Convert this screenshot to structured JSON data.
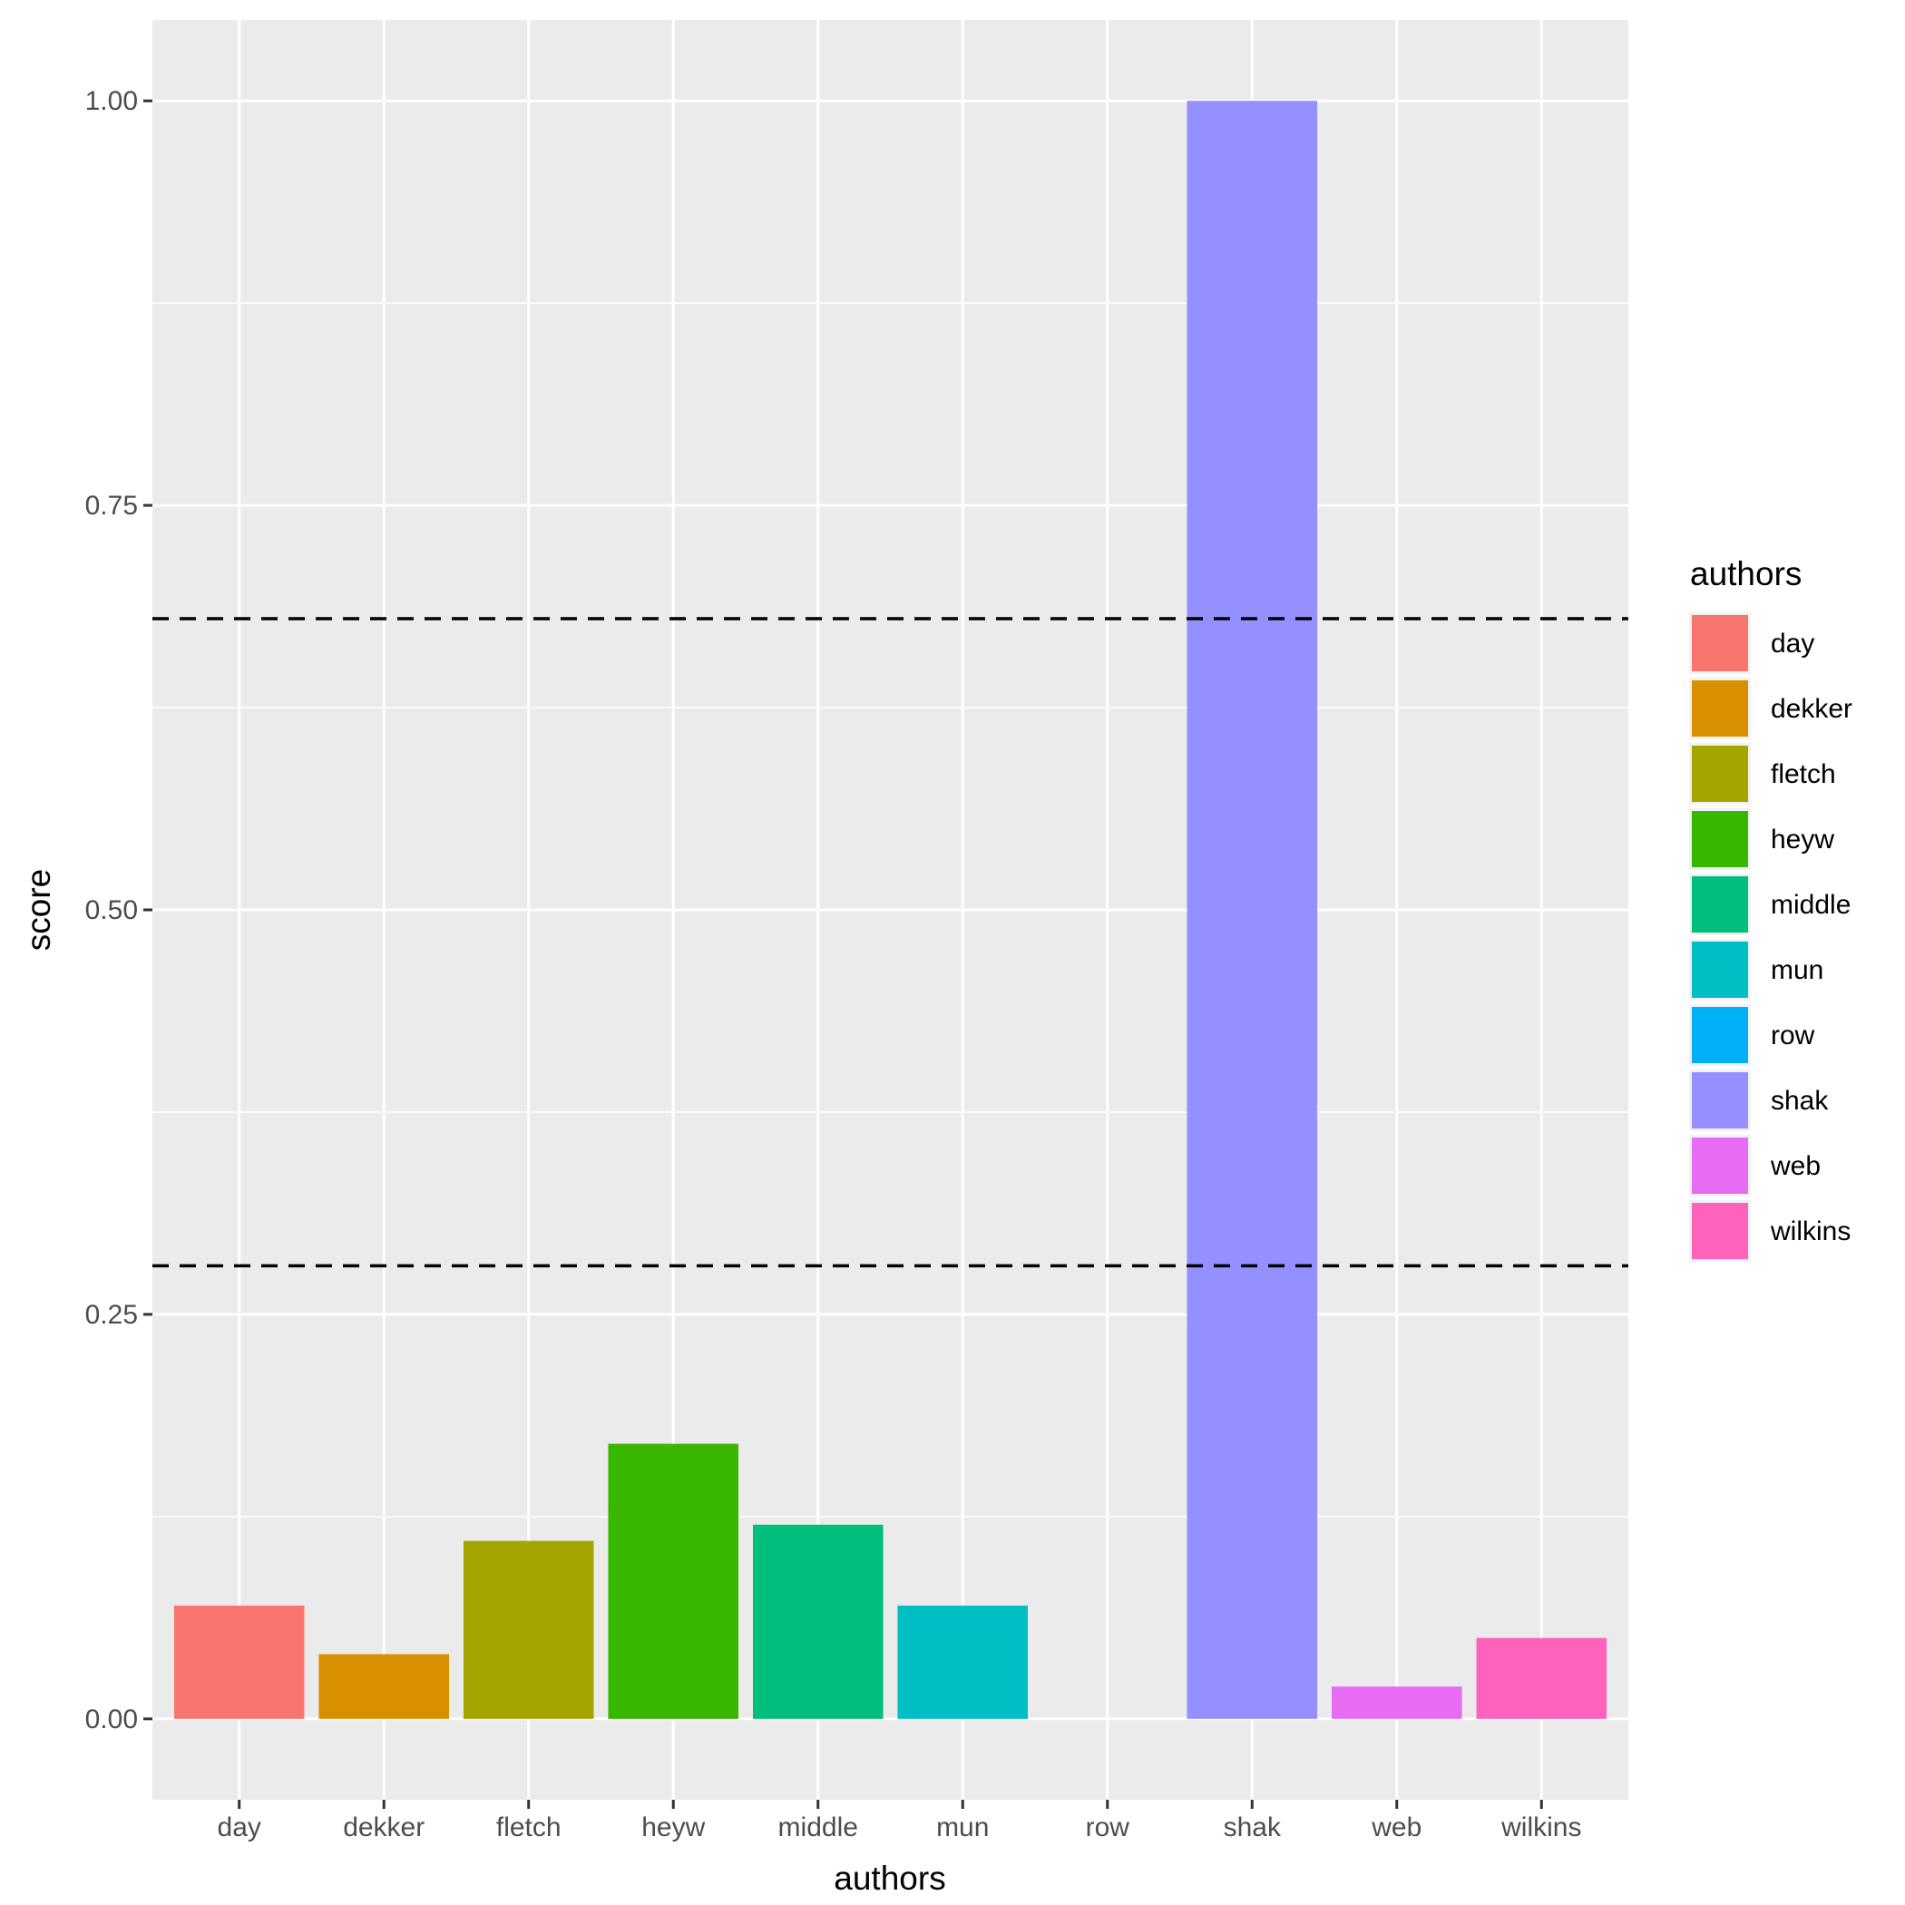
{
  "chart_data": {
    "type": "bar",
    "categories": [
      "day",
      "dekker",
      "fletch",
      "heyw",
      "middle",
      "mun",
      "row",
      "shak",
      "web",
      "wilkins"
    ],
    "values": [
      0.07,
      0.04,
      0.11,
      0.17,
      0.12,
      0.07,
      0.0,
      1.0,
      0.02,
      0.05
    ],
    "colors": [
      "#F8766D",
      "#D89000",
      "#A3A500",
      "#39B600",
      "#00BF7D",
      "#00BFC4",
      "#00B0F6",
      "#9590FF",
      "#E76BF3",
      "#FF62BC"
    ],
    "xlabel": "authors",
    "ylabel": "score",
    "ylim": [
      -0.05,
      1.05
    ],
    "yticks": [
      0.0,
      0.25,
      0.5,
      0.75,
      1.0
    ],
    "ytick_labels": [
      "0.00",
      "0.25",
      "0.50",
      "0.75",
      "1.00"
    ],
    "hlines": [
      0.28,
      0.68
    ],
    "hline_style": "dashed",
    "grid": true,
    "background": "#EBEBEB",
    "legend": {
      "title": "authors",
      "position": "right",
      "entries": [
        "day",
        "dekker",
        "fletch",
        "heyw",
        "middle",
        "mun",
        "row",
        "shak",
        "web",
        "wilkins"
      ]
    }
  }
}
